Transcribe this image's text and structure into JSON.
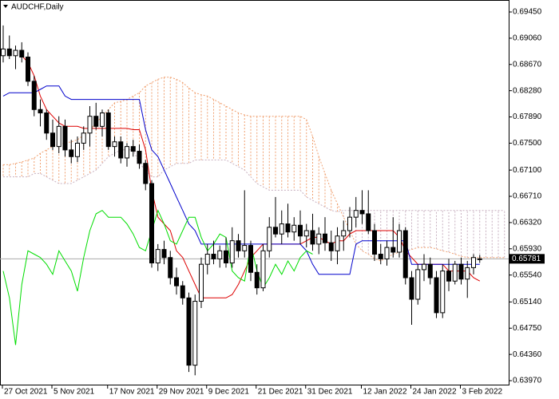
{
  "chart_data": {
    "type": "candlestick",
    "title": "AUDCHF,Daily",
    "categories": [
      "27 Oct 2021",
      null,
      null,
      null,
      null,
      null,
      null,
      null,
      "5 Nov 2021",
      null,
      null,
      null,
      null,
      null,
      null,
      null,
      null,
      "17 Nov 2021",
      null,
      null,
      null,
      null,
      null,
      null,
      null,
      "29 Nov 2021",
      null,
      null,
      null,
      null,
      null,
      null,
      null,
      "9 Dec 2021",
      null,
      null,
      null,
      null,
      null,
      null,
      null,
      "21 Dec 2021",
      null,
      null,
      null,
      null,
      null,
      null,
      null,
      "31 Dec 2021",
      null,
      null,
      null,
      null,
      null,
      null,
      null,
      null,
      "12 Jan 2022",
      null,
      null,
      null,
      null,
      null,
      null,
      null,
      "24 Jan 2022",
      null,
      null,
      null,
      null,
      null,
      null,
      null,
      "3 Feb 2022",
      null,
      null,
      null,
      null,
      null,
      null,
      null
    ],
    "open": [
      0.688,
      0.689,
      0.688,
      0.6888,
      0.6878,
      0.6842,
      0.68,
      0.6795,
      0.6765,
      0.6745,
      0.6775,
      0.674,
      0.673,
      0.675,
      0.6765,
      0.679,
      0.6775,
      0.6795,
      0.6745,
      0.6752,
      0.6728,
      0.6745,
      0.6738,
      0.672,
      0.669,
      0.6572,
      0.6592,
      0.658,
      0.655,
      0.6538,
      0.652,
      0.642,
      0.6515,
      0.657,
      0.6585,
      0.6578,
      0.659,
      0.6572,
      0.6605,
      0.659,
      0.6598,
      0.6558,
      0.6535,
      0.659,
      0.6625,
      0.6615,
      0.663,
      0.6618,
      0.6628,
      0.6612,
      0.662,
      0.66,
      0.6615,
      0.6602,
      0.659,
      0.6612,
      0.662,
      0.664,
      0.665,
      0.6645,
      0.662,
      0.6585,
      0.6578,
      0.6595,
      0.6588,
      0.662,
      0.655,
      0.6518,
      0.6562,
      0.657,
      0.655,
      0.6498,
      0.656,
      0.6545,
      0.657,
      0.6548,
      0.6565,
      0.6578,
      null,
      null,
      null,
      null
    ],
    "high": [
      0.6925,
      0.691,
      0.6895,
      0.69,
      0.6885,
      0.685,
      0.6815,
      0.68,
      0.6785,
      0.679,
      0.6785,
      0.6755,
      0.676,
      0.6775,
      0.6805,
      0.681,
      0.68,
      0.68,
      0.676,
      0.676,
      0.675,
      0.6755,
      0.6748,
      0.6725,
      0.6695,
      0.66,
      0.6605,
      0.659,
      0.6565,
      0.6545,
      0.6528,
      0.6525,
      0.658,
      0.66,
      0.6605,
      0.6598,
      0.661,
      0.6625,
      0.6615,
      0.668,
      0.6605,
      0.657,
      0.66,
      0.664,
      0.667,
      0.665,
      0.666,
      0.664,
      0.665,
      0.663,
      0.6645,
      0.6625,
      0.664,
      0.662,
      0.6625,
      0.6635,
      0.6655,
      0.667,
      0.668,
      0.668,
      0.663,
      0.66,
      0.6605,
      0.664,
      0.663,
      0.6625,
      0.656,
      0.657,
      0.6585,
      0.658,
      0.656,
      0.657,
      0.6578,
      0.6575,
      0.658,
      0.6575,
      0.6585,
      0.6584,
      null,
      null,
      null,
      null
    ],
    "low": [
      0.687,
      0.6875,
      0.686,
      0.687,
      0.6835,
      0.679,
      0.6775,
      0.6755,
      0.674,
      0.6735,
      0.673,
      0.672,
      0.6722,
      0.674,
      0.6745,
      0.677,
      0.676,
      0.674,
      0.673,
      0.672,
      0.6715,
      0.673,
      0.6712,
      0.668,
      0.6565,
      0.656,
      0.657,
      0.654,
      0.6525,
      0.651,
      0.641,
      0.6405,
      0.6505,
      0.6555,
      0.657,
      0.6565,
      0.6565,
      0.6565,
      0.658,
      0.658,
      0.6545,
      0.6525,
      0.653,
      0.658,
      0.661,
      0.66,
      0.661,
      0.6605,
      0.66,
      0.6595,
      0.659,
      0.6585,
      0.659,
      0.6575,
      0.657,
      0.659,
      0.661,
      0.6625,
      0.663,
      0.6615,
      0.6575,
      0.657,
      0.6568,
      0.658,
      0.658,
      0.654,
      0.648,
      0.651,
      0.6545,
      0.654,
      0.649,
      0.649,
      0.653,
      0.654,
      0.654,
      0.652,
      0.6555,
      0.6572,
      null,
      null,
      null,
      null
    ],
    "close": [
      0.689,
      0.688,
      0.6888,
      0.6878,
      0.6842,
      0.68,
      0.6795,
      0.6765,
      0.6745,
      0.6775,
      0.674,
      0.673,
      0.675,
      0.6765,
      0.679,
      0.6775,
      0.6795,
      0.6745,
      0.6752,
      0.6728,
      0.6745,
      0.6738,
      0.672,
      0.669,
      0.6572,
      0.6592,
      0.658,
      0.655,
      0.6538,
      0.652,
      0.642,
      0.6515,
      0.657,
      0.6585,
      0.6578,
      0.659,
      0.6572,
      0.6605,
      0.659,
      0.6598,
      0.6558,
      0.6535,
      0.659,
      0.6625,
      0.6615,
      0.663,
      0.6618,
      0.6628,
      0.6612,
      0.662,
      0.66,
      0.6615,
      0.6602,
      0.659,
      0.6612,
      0.662,
      0.664,
      0.665,
      0.6645,
      0.662,
      0.6585,
      0.6578,
      0.6595,
      0.6588,
      0.662,
      0.655,
      0.6518,
      0.6562,
      0.657,
      0.655,
      0.6498,
      0.656,
      0.6545,
      0.657,
      0.6548,
      0.6565,
      0.658,
      0.65781,
      null,
      null,
      null,
      null
    ],
    "last_price": 0.65781,
    "series": [
      {
        "color": "#dd0000",
        "values": [
          null,
          null,
          null,
          0.688,
          0.687,
          0.685,
          0.682,
          0.68,
          0.679,
          0.678,
          0.6775,
          0.6775,
          0.6775,
          0.6772,
          0.6772,
          0.6772,
          0.6772,
          0.6772,
          0.6772,
          0.6772,
          0.6772,
          0.677,
          0.677,
          0.674,
          0.668,
          0.664,
          0.663,
          0.662,
          0.659,
          0.658,
          0.656,
          0.654,
          0.652,
          0.652,
          0.652,
          0.652,
          0.652,
          0.6525,
          0.654,
          0.656,
          0.658,
          0.659,
          0.66,
          0.66,
          0.66,
          0.66,
          0.66,
          0.66,
          0.66,
          0.6605,
          0.661,
          0.661,
          0.6605,
          0.66,
          0.6605,
          0.6605,
          0.6615,
          0.662,
          0.662,
          0.662,
          0.662,
          0.662,
          0.662,
          0.662,
          0.661,
          0.659,
          0.658,
          0.657,
          0.657,
          0.657,
          0.657,
          0.657,
          0.656,
          0.656,
          0.656,
          0.656,
          0.655,
          0.6545,
          null,
          null,
          null,
          null
        ]
      },
      {
        "color": "#0000cc",
        "values": [
          0.682,
          0.6825,
          0.6825,
          0.6825,
          0.6825,
          0.6825,
          0.683,
          0.6835,
          0.6835,
          0.6835,
          0.682,
          0.6815,
          0.6815,
          0.6815,
          0.6815,
          0.6815,
          0.6815,
          0.6815,
          0.6815,
          0.6815,
          0.6815,
          0.6815,
          0.6815,
          0.677,
          0.674,
          0.673,
          0.671,
          0.669,
          0.667,
          0.665,
          0.663,
          0.662,
          0.66,
          0.66,
          0.66,
          0.66,
          0.66,
          0.66,
          0.66,
          0.66,
          0.66,
          0.66,
          0.66,
          0.66,
          0.66,
          0.66,
          0.66,
          0.66,
          0.66,
          0.659,
          0.657,
          0.6555,
          0.6555,
          0.6555,
          0.6555,
          0.6555,
          0.6555,
          0.66,
          0.6605,
          0.6605,
          0.6605,
          0.6605,
          0.6605,
          0.6605,
          0.6605,
          0.6605,
          0.657,
          0.657,
          0.657,
          0.657,
          0.657,
          0.657,
          0.657,
          0.657,
          0.657,
          0.657,
          0.657,
          0.657,
          null,
          null,
          null,
          null
        ]
      },
      {
        "color": "#00dd00",
        "values": [
          0.656,
          0.652,
          0.645,
          0.654,
          0.659,
          0.6585,
          0.658,
          0.657,
          0.6555,
          0.659,
          0.6575,
          0.656,
          0.653,
          0.658,
          0.662,
          0.6645,
          0.665,
          0.664,
          0.664,
          0.664,
          0.663,
          0.6615,
          0.6595,
          0.659,
          0.662,
          0.665,
          0.663,
          0.6605,
          0.66,
          0.662,
          0.664,
          0.664,
          0.661,
          0.659,
          0.66,
          0.6615,
          0.661,
          0.656,
          0.655,
          0.6545,
          0.66,
          0.656,
          0.6535,
          0.655,
          0.657,
          0.6555,
          0.6575,
          0.656,
          0.658,
          0.659,
          0.6585,
          null,
          null,
          null,
          null,
          null,
          null,
          null,
          null,
          null,
          null,
          null,
          null,
          null,
          null,
          null,
          null,
          null,
          null,
          null,
          null,
          null,
          null,
          null,
          null,
          null,
          null,
          null,
          null,
          null,
          null,
          null
        ]
      }
    ],
    "cloud": {
      "a": {
        "color": "#f0a070",
        "values": [
          0.6718,
          0.6718,
          0.672,
          0.6722,
          0.6725,
          0.6728,
          0.6735,
          0.674,
          0.6745,
          0.6748,
          0.675,
          0.6752,
          0.6755,
          0.6762,
          0.677,
          0.678,
          0.679,
          0.68,
          0.681,
          0.6812,
          0.6815,
          0.682,
          0.6825,
          0.6835,
          0.684,
          0.6845,
          0.6848,
          0.6848,
          0.6845,
          0.684,
          0.6832,
          0.6825,
          0.6822,
          0.682,
          0.6815,
          0.681,
          0.6805,
          0.68,
          0.6795,
          0.6792,
          0.679,
          0.679,
          0.679,
          0.679,
          0.679,
          0.679,
          0.679,
          0.679,
          0.679,
          0.6785,
          0.676,
          0.673,
          0.6705,
          0.668,
          0.666,
          0.664,
          0.662,
          0.66,
          0.659,
          0.6585,
          0.6578,
          0.6575,
          0.658,
          0.6585,
          0.6588,
          0.659,
          0.6592,
          0.6595,
          0.6595,
          0.6595,
          0.6593,
          0.659,
          0.6588,
          0.6585,
          0.6582,
          0.658,
          0.658,
          0.658,
          0.658,
          0.658,
          0.658,
          0.658
        ]
      },
      "b": {
        "color": "#c8b0c0",
        "values": [
          0.67,
          0.67,
          0.67,
          0.67,
          0.67,
          0.6705,
          0.6705,
          0.67,
          0.6695,
          0.669,
          0.669,
          0.669,
          0.6695,
          0.67,
          0.6705,
          0.671,
          0.672,
          0.673,
          0.6735,
          0.674,
          0.674,
          0.674,
          0.672,
          0.671,
          0.67,
          0.67,
          0.671,
          0.6715,
          0.672,
          0.672,
          0.672,
          0.6725,
          0.6725,
          0.6725,
          0.6725,
          0.6725,
          0.6725,
          0.672,
          0.6715,
          0.671,
          0.67,
          0.669,
          0.6685,
          0.668,
          0.668,
          0.668,
          0.668,
          0.668,
          0.668,
          0.667,
          0.6665,
          0.666,
          0.6655,
          0.665,
          0.6648,
          0.665,
          0.665,
          0.665,
          0.665,
          0.665,
          0.665,
          0.665,
          0.665,
          0.665,
          0.665,
          0.665,
          0.665,
          0.665,
          0.665,
          0.665,
          0.665,
          0.665,
          0.665,
          0.665,
          0.665,
          0.665,
          0.665,
          0.665,
          0.665,
          0.665,
          0.665,
          0.665
        ]
      }
    },
    "ylim": [
      0.63911,
      0.69628
    ],
    "yticks": [
      {
        "value": 0.6945,
        "label": "0.69450"
      },
      {
        "value": 0.6906,
        "label": "0.69060"
      },
      {
        "value": 0.6867,
        "label": "0.68670"
      },
      {
        "value": 0.6828,
        "label": "0.68280"
      },
      {
        "value": 0.6789,
        "label": "0.67890"
      },
      {
        "value": 0.675,
        "label": "0.67500"
      },
      {
        "value": 0.671,
        "label": "0.67100"
      },
      {
        "value": 0.6671,
        "label": "0.66710"
      },
      {
        "value": 0.6632,
        "label": "0.66320"
      },
      {
        "value": 0.6593,
        "label": "0.65930"
      },
      {
        "value": 0.6554,
        "label": "0.65540"
      },
      {
        "value": 0.6514,
        "label": "0.65140"
      },
      {
        "value": 0.6475,
        "label": "0.64750"
      },
      {
        "value": 0.6436,
        "label": "0.64360"
      },
      {
        "value": 0.6397,
        "label": "0.63970"
      }
    ]
  }
}
